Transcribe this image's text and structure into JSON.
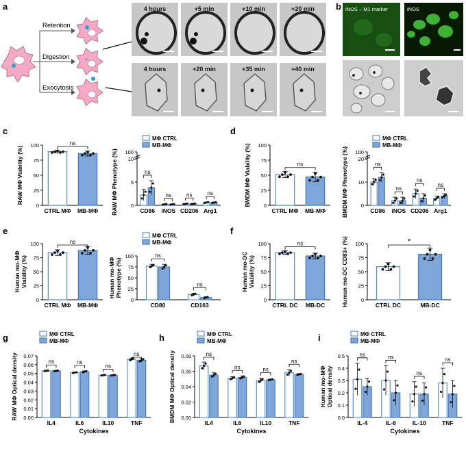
{
  "panel_letters": [
    "a",
    "b",
    "c",
    "d",
    "e",
    "f",
    "g",
    "h",
    "i"
  ],
  "colors": {
    "ctrl_fill": "#ffffff",
    "ctrl_stroke": "#5b8fd0",
    "mb_fill": "#7ea6d8",
    "mb_stroke": "#4a7dbf",
    "cell": "#f4a9c4",
    "nucleus": "#ffffff",
    "particle": "#2aa3d6",
    "fluor_bg": "#0b2a08",
    "fluor_cell": "#3fb83a",
    "micro_bg": "#cfcfcf"
  },
  "panel_a": {
    "branches": [
      "Retention",
      "Digestion",
      "Exocytosis"
    ],
    "top_times": [
      "4 hours",
      "+5 min",
      "+10 min",
      "+20 min"
    ],
    "bottom_times": [
      "4 hours",
      "+20 min",
      "+35 min",
      "+40 min"
    ]
  },
  "panel_b": {
    "label_left": "iNOS – M1 marker",
    "label_right": "iNOS"
  },
  "legend": {
    "ctrl": "MΦ CTRL",
    "mb": "MB-MΦ"
  },
  "ns": "ns",
  "star": "*",
  "chart_data": [
    {
      "id": "c-left",
      "type": "bar",
      "ylabel": "RAW MΦ Viability (%)",
      "categories": [
        "CTRL MΦ",
        "MB-MΦ"
      ],
      "values": [
        89,
        86
      ],
      "errors": [
        2,
        4
      ],
      "ylim": [
        0,
        100
      ],
      "yticks": [
        "0",
        "25",
        "50",
        "75",
        "100"
      ],
      "sig": [
        {
          "a": 0,
          "b": 1,
          "label": "ns"
        }
      ]
    },
    {
      "id": "c-right",
      "type": "bar",
      "ylabel": "RAW MΦ Phenotype (%)",
      "categories": [
        "CD86",
        "iNOS",
        "CD206",
        "Arg1"
      ],
      "series": [
        {
          "name": "MΦ CTRL",
          "values": [
            2.2,
            0.2,
            0.3,
            0.6
          ]
        },
        {
          "name": "MB-MΦ",
          "values": [
            3.8,
            0.2,
            0.3,
            0.6
          ]
        }
      ],
      "errors": [
        [
          1.2,
          0.1,
          0.1,
          0.1
        ],
        [
          1.5,
          0.1,
          0.1,
          0.1
        ]
      ],
      "ylim": [
        0,
        10
      ],
      "yticks": [
        "0",
        "5",
        "10"
      ],
      "axis_break": true,
      "top_tick": "100",
      "legend": "top"
    },
    {
      "id": "d-left",
      "type": "bar",
      "ylabel": "BMDM MΦ Viability (%)",
      "categories": [
        "CTRL MΦ",
        "MB-MΦ"
      ],
      "values": [
        51,
        47
      ],
      "errors": [
        5,
        8
      ],
      "ylim": [
        0,
        100
      ],
      "yticks": [
        "0",
        "25",
        "50",
        "75",
        "100"
      ],
      "sig": [
        {
          "a": 0,
          "b": 1,
          "label": "ns"
        }
      ]
    },
    {
      "id": "d-right",
      "type": "bar",
      "ylabel": "BMDM MΦ Phenotype (%)",
      "categories": [
        "CD86",
        "iNOS",
        "CD206",
        "Arg1"
      ],
      "series": [
        {
          "name": "MΦ CTRL",
          "values": [
            10,
            2,
            5,
            3
          ]
        },
        {
          "name": "MB-MΦ",
          "values": [
            12,
            2,
            3,
            4
          ]
        }
      ],
      "errors": [
        [
          1.5,
          1.5,
          2,
          1
        ],
        [
          2,
          1.5,
          2,
          1
        ]
      ],
      "ylim": [
        0,
        20
      ],
      "yticks": [
        "0",
        "10",
        "20"
      ],
      "axis_break": true,
      "top_tick": "100",
      "legend": "top"
    },
    {
      "id": "e-left",
      "type": "bar",
      "ylabel": "Human mo-MΦ Viability (%)",
      "categories": [
        "CTRL MΦ",
        "MB-MΦ"
      ],
      "values": [
        84,
        88
      ],
      "errors": [
        5,
        7
      ],
      "ylim": [
        0,
        100
      ],
      "yticks": [
        "0",
        "25",
        "50",
        "75",
        "100"
      ],
      "sig": [
        {
          "a": 0,
          "b": 1,
          "label": "ns"
        }
      ]
    },
    {
      "id": "e-right",
      "type": "bar",
      "ylabel": "Human mo-MΦ Phenotype (%)",
      "categories": [
        "CD80",
        "CD163"
      ],
      "series": [
        {
          "name": "MΦ CTRL",
          "values": [
            77,
            12
          ]
        },
        {
          "name": "MB-MΦ",
          "values": [
            75,
            5
          ]
        }
      ],
      "errors": [
        [
          4,
          3
        ],
        [
          6,
          2
        ]
      ],
      "ylim": [
        0,
        100
      ],
      "yticks": [
        "0",
        "25",
        "50",
        "75",
        "100"
      ],
      "legend": "top"
    },
    {
      "id": "f-left",
      "type": "bar",
      "ylabel": "Human mo-DC Viability (%)",
      "categories": [
        "CTRL DC",
        "MB-DC"
      ],
      "values": [
        84,
        78
      ],
      "errors": [
        3,
        5
      ],
      "ylim": [
        0,
        100
      ],
      "yticks": [
        "0",
        "25",
        "50",
        "75",
        "100"
      ],
      "sig": [
        {
          "a": 0,
          "b": 1,
          "label": "ns"
        }
      ]
    },
    {
      "id": "f-right",
      "type": "bar",
      "ylabel": "Human mo-DC CD83+ (%)",
      "categories": [
        "CTRL DC",
        "MB-DC"
      ],
      "values": [
        59,
        81
      ],
      "errors": [
        7,
        11
      ],
      "ylim": [
        0,
        100
      ],
      "yticks": [
        "0",
        "25",
        "50",
        "75",
        "100"
      ],
      "sig": [
        {
          "a": 0,
          "b": 1,
          "label": "*"
        }
      ]
    },
    {
      "id": "g",
      "type": "bar",
      "ylabel": "RAW MΦ Optical density",
      "xlabel": "Cytokines",
      "categories": [
        "IL4",
        "IL6",
        "IL10",
        "TNF"
      ],
      "series": [
        {
          "name": "MΦ CTRL",
          "values": [
            0.053,
            0.051,
            0.048,
            0.066
          ]
        },
        {
          "name": "MB-MΦ",
          "values": [
            0.053,
            0.052,
            0.048,
            0.065
          ]
        }
      ],
      "errors": [
        [
          0.0005,
          0.0005,
          0.0005,
          0.0015
        ],
        [
          0.0005,
          0.001,
          0.0005,
          0.002
        ]
      ],
      "ylim": [
        0,
        0.07
      ],
      "yticks": [
        "0.00",
        "0.01",
        "0.02",
        "0.03",
        "0.04",
        "0.05",
        "0.06",
        "0.07"
      ],
      "legend": "top-left"
    },
    {
      "id": "h",
      "type": "bar",
      "ylabel": "BMDM MΦ Optical density",
      "xlabel": "Cytokines",
      "categories": [
        "IL4",
        "IL6",
        "IL10",
        "TNF"
      ],
      "series": [
        {
          "name": "MΦ CTRL",
          "values": [
            0.067,
            0.051,
            0.048,
            0.058
          ]
        },
        {
          "name": "MB-MΦ",
          "values": [
            0.055,
            0.052,
            0.049,
            0.056
          ]
        }
      ],
      "errors": [
        [
          0.005,
          0.002,
          0.003,
          0.004
        ],
        [
          0.003,
          0.002,
          0.001,
          0.001
        ]
      ],
      "ylim": [
        0,
        0.08
      ],
      "yticks": [
        "0.00",
        "0.02",
        "0.04",
        "0.06",
        "0.08"
      ],
      "legend": "top-left"
    },
    {
      "id": "i",
      "type": "bar",
      "ylabel": "Human mo-MΦ Optical density",
      "xlabel": "Cytokines",
      "categories": [
        "IL-4",
        "IL-6",
        "IL-10",
        "TNF"
      ],
      "series": [
        {
          "name": "MΦ CTRL",
          "values": [
            0.31,
            0.3,
            0.19,
            0.28
          ]
        },
        {
          "name": "MB-MΦ",
          "values": [
            0.25,
            0.2,
            0.19,
            0.19
          ]
        }
      ],
      "errors": [
        [
          0.13,
          0.12,
          0.1,
          0.12
        ],
        [
          0.07,
          0.1,
          0.09,
          0.11
        ]
      ],
      "ylim": [
        0,
        0.5
      ],
      "yticks": [
        "0.0",
        "0.1",
        "0.2",
        "0.3",
        "0.4",
        "0.5"
      ],
      "legend": "top-left"
    }
  ]
}
